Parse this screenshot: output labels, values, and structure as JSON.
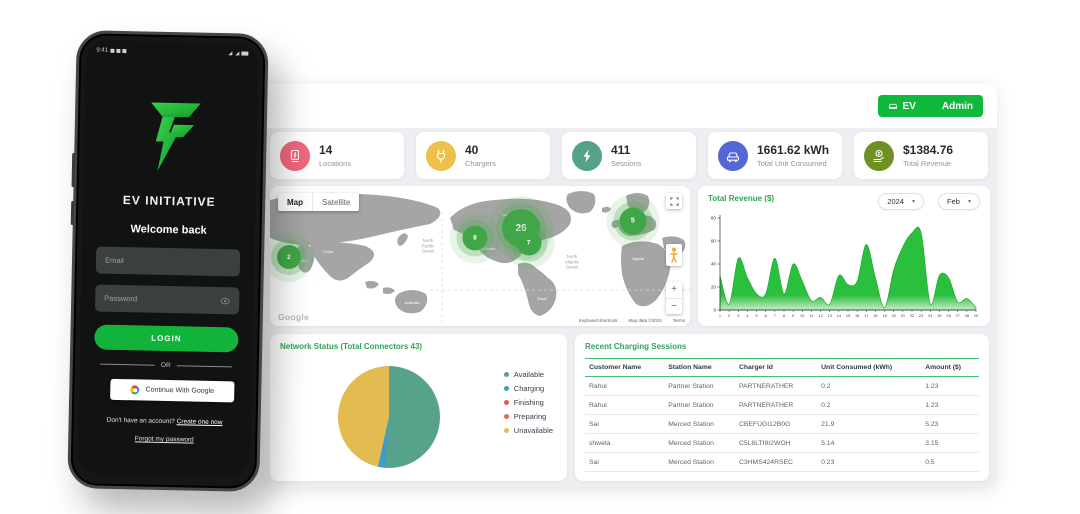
{
  "header": {
    "ev_label": "EV",
    "admin_label": "Admin"
  },
  "stats": [
    {
      "value": "14",
      "label": "Locations",
      "icon": "charging-station-icon",
      "color": "#f2677f"
    },
    {
      "value": "40",
      "label": "Chargers",
      "icon": "plug-icon",
      "color": "#ecc04a"
    },
    {
      "value": "411",
      "label": "Sessions",
      "icon": "bolt-icon",
      "color": "#56a287"
    },
    {
      "value": "1661.62 kWh",
      "label": "Total Unit Consumed",
      "icon": "car-icon",
      "color": "#5566d6"
    },
    {
      "value": "$1384.76",
      "label": "Total Revenue",
      "icon": "money-icon",
      "color": "#6f9023"
    }
  ],
  "map": {
    "map_button": "Map",
    "satellite_button": "Satellite",
    "zoom_in": "+",
    "zoom_out": "−",
    "google_logo": "Google",
    "attribution": {
      "shortcuts": "Keyboard shortcuts",
      "data": "Map data ©2024",
      "terms": "Terms"
    },
    "ocean_labels": [
      "North Pacific Ocean",
      "North Atlantic Ocean"
    ],
    "land_labels": [
      "Russia",
      "Canada",
      "United States",
      "China",
      "India",
      "Brazil",
      "Algeria",
      "Australia"
    ],
    "markers": [
      {
        "count": "2",
        "x": 4.5,
        "y": 51,
        "size": 24
      },
      {
        "count": "8",
        "x": 48.8,
        "y": 37,
        "size": 25
      },
      {
        "count": "26",
        "x": 59.8,
        "y": 30,
        "size": 38
      },
      {
        "count": "7",
        "x": 61.6,
        "y": 41,
        "size": 25
      },
      {
        "count": "5",
        "x": 86.4,
        "y": 25,
        "size": 27
      }
    ]
  },
  "chart_data": [
    {
      "type": "area",
      "title": "Total Revenue ($)",
      "year": "2024",
      "month": "Feb",
      "x": [
        1,
        2,
        3,
        4,
        5,
        6,
        7,
        8,
        9,
        10,
        11,
        12,
        13,
        14,
        15,
        16,
        17,
        18,
        19,
        20,
        21,
        22,
        23,
        24,
        25,
        26,
        27,
        28,
        29
      ],
      "values": [
        30,
        5,
        45,
        28,
        14,
        14,
        45,
        14,
        40,
        25,
        8,
        11,
        5,
        30,
        22,
        25,
        57,
        28,
        2,
        35,
        55,
        67,
        67,
        5,
        30,
        28,
        7,
        10,
        2
      ],
      "xlabel": "",
      "ylabel": "",
      "ylim": [
        0,
        80
      ],
      "yticks": [
        0,
        20,
        40,
        60,
        80
      ],
      "color": "#2bbf3e",
      "legend_position": "none",
      "grid": false
    },
    {
      "type": "pie",
      "title": "Network Status (Total Connectors 43)",
      "labels": [
        "Available",
        "Charging",
        "Finishing",
        "Preparing",
        "Unavailable"
      ],
      "values": [
        22,
        1,
        0,
        0,
        20
      ],
      "colors": [
        "#57a28b",
        "#3d9dc8",
        "#ef5350",
        "#f0634c",
        "#e2bc51"
      ],
      "legend_position": "right"
    }
  ],
  "sessions": {
    "title": "Recent Charging Sessions",
    "columns": [
      "Customer Name",
      "Station Name",
      "Charger Id",
      "Unit Consumed (kWh)",
      "Amount ($)"
    ],
    "rows": [
      [
        "Rahul",
        "Partner Station",
        "PARTNERATHER",
        "0.2",
        "1.23"
      ],
      [
        "Rahul",
        "Partner Station",
        "PARTNERATHER",
        "0.2",
        "1.23"
      ],
      [
        "Sai",
        "Merced Station",
        "CBEFUGI12B0G",
        "21.9",
        "5.23"
      ],
      [
        "shweta",
        "Merced Station",
        "C5L8LTI9I2WOH",
        "5.14",
        "3.15"
      ],
      [
        "Sai",
        "Merced Station",
        "C3HMS424RSEC",
        "0.23",
        "0.5"
      ]
    ]
  },
  "phone": {
    "status_time": "9:41",
    "brand": "EV INITIATIVE",
    "welcome": "Welcome back",
    "email_placeholder": "Email",
    "password_placeholder": "Password",
    "login_label": "LOGIN",
    "or_label": "OR",
    "google_label": "Continue With Google",
    "signup_text": "Don't have an account? ",
    "signup_link": "Create one now",
    "forgot_link": "Forgot my password"
  }
}
